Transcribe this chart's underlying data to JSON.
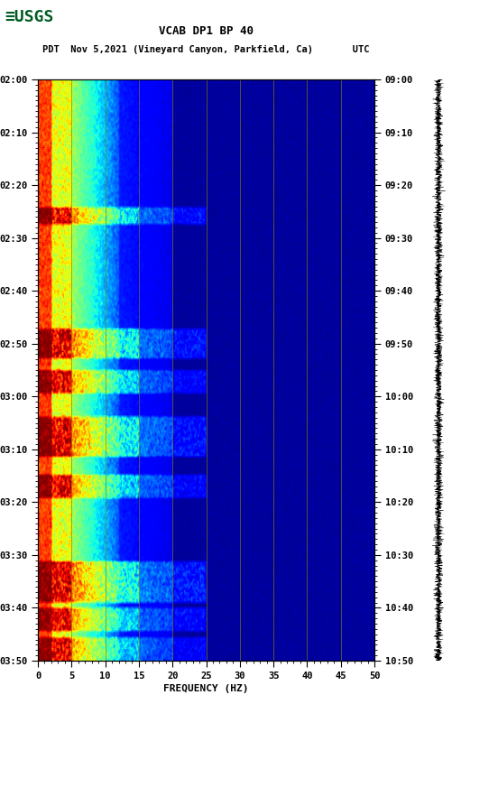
{
  "title_line1": "VCAB DP1 BP 40",
  "title_line2": "PDT  Nov 5,2021 (Vineyard Canyon, Parkfield, Ca)       UTC",
  "xlabel": "FREQUENCY (HZ)",
  "freq_min": 0,
  "freq_max": 50,
  "left_time_labels": [
    "02:00",
    "02:10",
    "02:20",
    "02:30",
    "02:40",
    "02:50",
    "03:00",
    "03:10",
    "03:20",
    "03:30",
    "03:40",
    "03:50"
  ],
  "right_time_labels": [
    "09:00",
    "09:10",
    "09:20",
    "09:30",
    "09:40",
    "09:50",
    "10:00",
    "10:10",
    "10:20",
    "10:30",
    "10:40",
    "10:50"
  ],
  "freq_ticks": [
    0,
    5,
    10,
    15,
    20,
    25,
    30,
    35,
    40,
    45,
    50
  ],
  "vertical_grid_lines": [
    5,
    10,
    15,
    20,
    25,
    30,
    35,
    40,
    45
  ],
  "n_time_steps": 550,
  "n_freq_steps": 400,
  "seed": 12345
}
